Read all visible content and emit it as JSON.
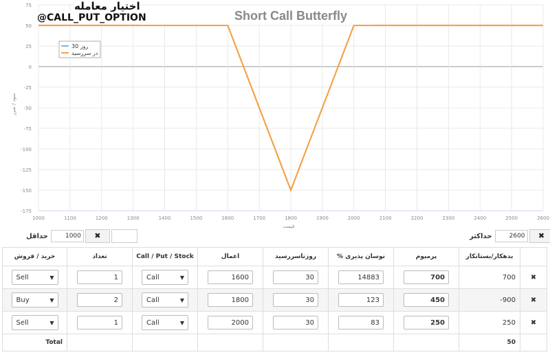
{
  "watermark": {
    "line1": "اختیار معامله",
    "line2": "@CALL_PUT_OPTION"
  },
  "chart_data": {
    "type": "line",
    "title": "Short Call Butterfly",
    "xlabel": "قیمت",
    "ylabel": "سود / ضرر",
    "xlim": [
      1000,
      2600
    ],
    "ylim": [
      -175,
      75
    ],
    "x_ticks": [
      "1000",
      "1100",
      "1200",
      "1300",
      "1400",
      "1500",
      "1600",
      "1700",
      "1800",
      "1900",
      "2000",
      "2100",
      "2200",
      "2300",
      "2400",
      "2500",
      "2600"
    ],
    "y_ticks": [
      "75",
      "50",
      "25",
      "0",
      "-25",
      "-50",
      "-75",
      "-100",
      "-125",
      "-150",
      "-175"
    ],
    "legend": {
      "placement": "top-left",
      "entries": [
        "روز 30",
        "در سررسید"
      ]
    },
    "series": [
      {
        "name": "روز 30",
        "color": "#7cb5ec",
        "x": [],
        "y": []
      },
      {
        "name": "در سررسید",
        "color": "#f4a34b",
        "x": [
          1000,
          1600,
          1800,
          2000,
          2600
        ],
        "y": [
          50,
          50,
          -150,
          50,
          50
        ]
      }
    ],
    "grid": true
  },
  "controls": {
    "max": {
      "label": "حداکثر",
      "value": "2600",
      "x": "✖"
    },
    "min": {
      "label": "حداقل",
      "value": "1000",
      "x": "✖"
    }
  },
  "table": {
    "headers": [
      "خرید / فروش",
      "تعداد",
      "Call / Put / Stock",
      "اعمال",
      "روزتاسررسید",
      "% نوسان پذیری",
      "پرمیوم",
      "بدهکار/بستانکار",
      ""
    ],
    "rows": [
      {
        "side": "Sell",
        "qty": "1",
        "type": "Call",
        "strike": "1600",
        "days": "30",
        "vol": "14883",
        "premium": "700",
        "debit": "700",
        "del": "✖"
      },
      {
        "side": "Buy",
        "qty": "2",
        "type": "Call",
        "strike": "1800",
        "days": "30",
        "vol": "123",
        "premium": "450",
        "debit": "-900",
        "del": "✖"
      },
      {
        "side": "Sell",
        "qty": "1",
        "type": "Call",
        "strike": "2000",
        "days": "30",
        "vol": "83",
        "premium": "250",
        "debit": "250",
        "del": "✖"
      }
    ],
    "total_label": "Total",
    "total_value": "50"
  }
}
